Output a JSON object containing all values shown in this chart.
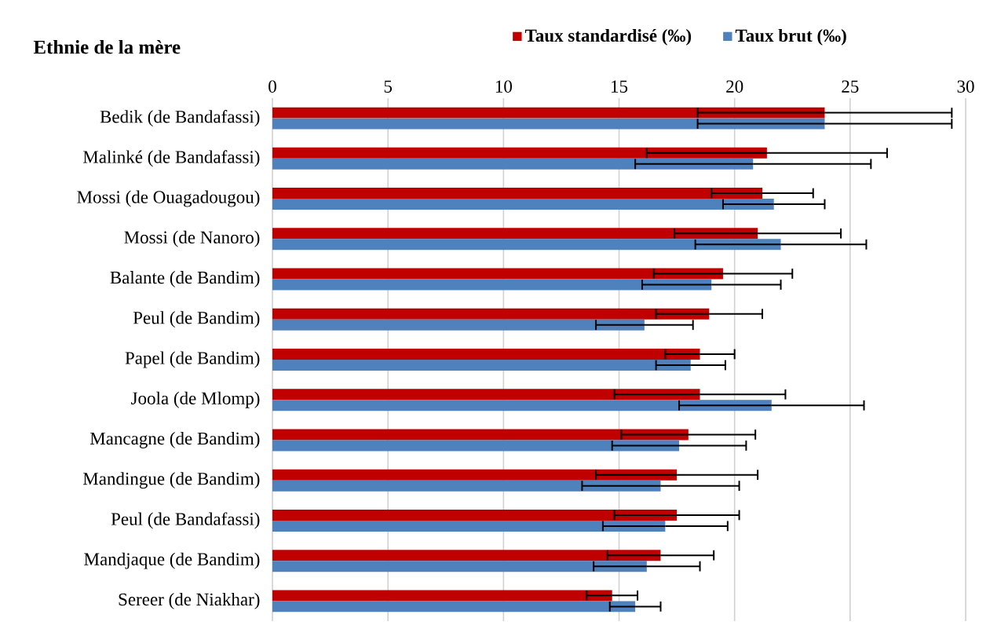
{
  "chart_data": {
    "type": "bar",
    "orientation": "horizontal",
    "ylabel": "Ethnie de la mère",
    "categories": [
      "Bedik (de Bandafassi)",
      "Malinké (de Bandafassi)",
      "Mossi (de Ouagadougou)",
      "Mossi (de Nanoro)",
      "Balante (de Bandim)",
      "Peul (de Bandim)",
      "Papel (de Bandim)",
      "Joola (de Mlomp)",
      "Mancagne (de Bandim)",
      "Mandingue (de Bandim)",
      "Peul (de Bandafassi)",
      "Mandjaque (de Bandim)",
      "Sereer (de Niakhar)"
    ],
    "series": [
      {
        "name": "Taux standardisé (‰)",
        "color": "#c00000",
        "values": [
          23.9,
          21.4,
          21.2,
          21.0,
          19.5,
          18.9,
          18.5,
          18.5,
          18.0,
          17.5,
          17.5,
          16.8,
          14.7
        ],
        "errors": [
          [
            18.4,
            29.4
          ],
          [
            16.2,
            26.6
          ],
          [
            19.0,
            23.4
          ],
          [
            17.4,
            24.6
          ],
          [
            16.5,
            22.5
          ],
          [
            16.6,
            21.2
          ],
          [
            17.0,
            20.0
          ],
          [
            14.8,
            22.2
          ],
          [
            15.1,
            20.9
          ],
          [
            14.0,
            21.0
          ],
          [
            14.8,
            20.2
          ],
          [
            14.5,
            19.1
          ],
          [
            13.6,
            15.8
          ]
        ]
      },
      {
        "name": "Taux brut (‰)",
        "color": "#4f81bd",
        "values": [
          23.9,
          20.8,
          21.7,
          22.0,
          19.0,
          16.1,
          18.1,
          21.6,
          17.6,
          16.8,
          17.0,
          16.2,
          15.7
        ],
        "errors": [
          [
            18.4,
            29.4
          ],
          [
            15.7,
            25.9
          ],
          [
            19.5,
            23.9
          ],
          [
            18.3,
            25.7
          ],
          [
            16.0,
            22.0
          ],
          [
            14.0,
            18.2
          ],
          [
            16.6,
            19.6
          ],
          [
            17.6,
            25.6
          ],
          [
            14.7,
            20.5
          ],
          [
            13.4,
            20.2
          ],
          [
            14.3,
            19.7
          ],
          [
            13.9,
            18.5
          ],
          [
            14.6,
            16.8
          ]
        ]
      }
    ],
    "xlim": [
      0,
      30
    ],
    "xticks": [
      0,
      5,
      10,
      15,
      20,
      25,
      30
    ],
    "grid": "x",
    "legend": "top"
  }
}
